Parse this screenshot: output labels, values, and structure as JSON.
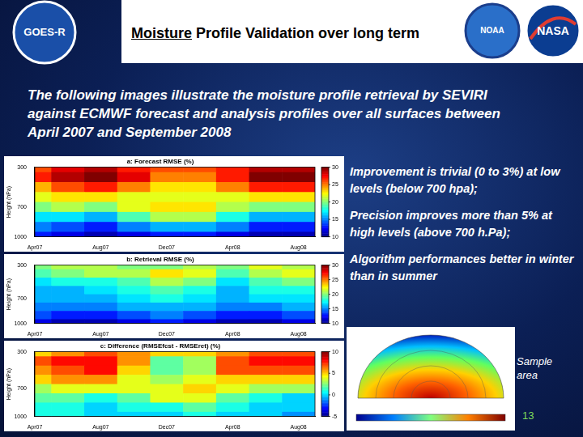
{
  "slide": {
    "title": "Moisture Profile Validation over long term",
    "logos": [
      "GOES-R",
      "NOAA",
      "NASA"
    ],
    "intro": "The following images illustrate the moisture profile retrieval by SEVIRI against ECMWF forecast and analysis profiles over all surfaces between April 2007 and September 2008",
    "bullets": [
      "Improvement is trivial (0 to 3%) at low levels (below 700 hpa);",
      "Precision improves more than 5% at high levels (above 700 h.Pa);",
      "Algorithm performances better in winter than in summer"
    ],
    "sample_label": "Sample area",
    "page_number": "13"
  },
  "chart_data": [
    {
      "type": "heatmap",
      "title": "a: Forecast RMSE (%)",
      "y_label": "Height (hPa)",
      "x": [
        0,
        2,
        4,
        6,
        8,
        10,
        12,
        14,
        16
      ],
      "y": [
        300,
        400,
        500,
        600,
        700,
        800,
        900,
        1000
      ],
      "cells": [
        [
          26,
          28,
          29,
          27,
          26,
          26,
          27,
          29,
          29
        ],
        [
          27,
          29,
          30,
          28,
          25,
          25,
          27,
          30,
          30
        ],
        [
          24,
          26,
          27,
          25,
          23,
          23,
          25,
          27,
          27
        ],
        [
          22,
          23,
          23,
          22,
          22,
          22,
          22,
          23,
          23
        ],
        [
          20,
          21,
          20,
          22,
          23,
          23,
          21,
          20,
          20
        ],
        [
          17,
          17,
          16,
          19,
          21,
          21,
          18,
          16,
          16
        ],
        [
          15,
          14,
          13,
          15,
          16,
          16,
          15,
          13,
          13
        ],
        [
          13,
          12,
          11,
          12,
          13,
          13,
          12,
          11,
          11
        ]
      ],
      "xlim": [
        0,
        17
      ],
      "xticks": [
        {
          "value": 0,
          "label": "Apr07"
        },
        {
          "value": 4,
          "label": "Aug07"
        },
        {
          "value": 8,
          "label": "Dec07"
        },
        {
          "value": 12,
          "label": "Apr08"
        },
        {
          "value": 16,
          "label": "Aug08"
        }
      ],
      "ylim": [
        300,
        1000
      ],
      "yticks": [
        300,
        700,
        1000
      ],
      "colorbar_range": [
        10,
        30
      ],
      "colorbar_ticks": [
        10,
        15,
        20,
        25,
        30
      ],
      "grid": false
    },
    {
      "type": "heatmap",
      "title": "b: Retrieval RMSE (%)",
      "y_label": "Height (hPa)",
      "x": [
        0,
        2,
        4,
        6,
        8,
        10,
        12,
        14,
        16
      ],
      "y": [
        300,
        400,
        500,
        600,
        700,
        800,
        900,
        1000
      ],
      "cells": [
        [
          20,
          21,
          21,
          20,
          20,
          21,
          20,
          22,
          21
        ],
        [
          19,
          20,
          21,
          21,
          23,
          22,
          19,
          21,
          22
        ],
        [
          17,
          18,
          18,
          19,
          21,
          20,
          17,
          19,
          20
        ],
        [
          16,
          16,
          17,
          18,
          19,
          18,
          16,
          18,
          18
        ],
        [
          16,
          16,
          16,
          17,
          18,
          17,
          16,
          17,
          17
        ],
        [
          15,
          15,
          15,
          16,
          16,
          16,
          15,
          15,
          16
        ],
        [
          14,
          13,
          13,
          14,
          15,
          14,
          13,
          13,
          14
        ],
        [
          12,
          11,
          11,
          12,
          13,
          12,
          11,
          11,
          12
        ]
      ],
      "xlim": [
        0,
        17
      ],
      "xticks": [
        {
          "value": 0,
          "label": "Apr07"
        },
        {
          "value": 4,
          "label": "Aug07"
        },
        {
          "value": 8,
          "label": "Dec07"
        },
        {
          "value": 12,
          "label": "Apr08"
        },
        {
          "value": 16,
          "label": "Aug08"
        }
      ],
      "ylim": [
        300,
        1000
      ],
      "yticks": [
        300,
        700,
        1000
      ],
      "colorbar_range": [
        10,
        30
      ],
      "colorbar_ticks": [
        10,
        15,
        20,
        25,
        30
      ],
      "grid": false
    },
    {
      "type": "heatmap",
      "title": "c: Difference (RMSEfcst - RMSEret) (%)",
      "y_label": "Height (hPa)",
      "x": [
        0,
        2,
        4,
        6,
        8,
        10,
        12,
        14,
        16
      ],
      "y": [
        300,
        400,
        500,
        600,
        700,
        800,
        900,
        1000
      ],
      "cells": [
        [
          5,
          6,
          7,
          6,
          5,
          5,
          6,
          7,
          7
        ],
        [
          7,
          8,
          8,
          6,
          2,
          3,
          7,
          8,
          8
        ],
        [
          6,
          7,
          8,
          5,
          2,
          3,
          7,
          7,
          7
        ],
        [
          5,
          6,
          6,
          4,
          3,
          4,
          5,
          5,
          5
        ],
        [
          3,
          4,
          4,
          4,
          4,
          5,
          4,
          3,
          3
        ],
        [
          2,
          2,
          1,
          2,
          4,
          4,
          2,
          1,
          0
        ],
        [
          1,
          1,
          0,
          1,
          1,
          2,
          1,
          0,
          0
        ],
        [
          1,
          1,
          0,
          0,
          0,
          1,
          0,
          0,
          -1
        ]
      ],
      "xlim": [
        0,
        17
      ],
      "xticks": [
        {
          "value": 0,
          "label": "Apr07"
        },
        {
          "value": 4,
          "label": "Aug07"
        },
        {
          "value": 8,
          "label": "Dec07"
        },
        {
          "value": 12,
          "label": "Apr08"
        },
        {
          "value": 16,
          "label": "Aug08"
        }
      ],
      "ylim": [
        300,
        1000
      ],
      "yticks": [
        300,
        700,
        1000
      ],
      "colorbar_range": [
        -5,
        10
      ],
      "colorbar_ticks": [
        -5,
        0,
        5,
        10
      ],
      "grid": false
    }
  ]
}
